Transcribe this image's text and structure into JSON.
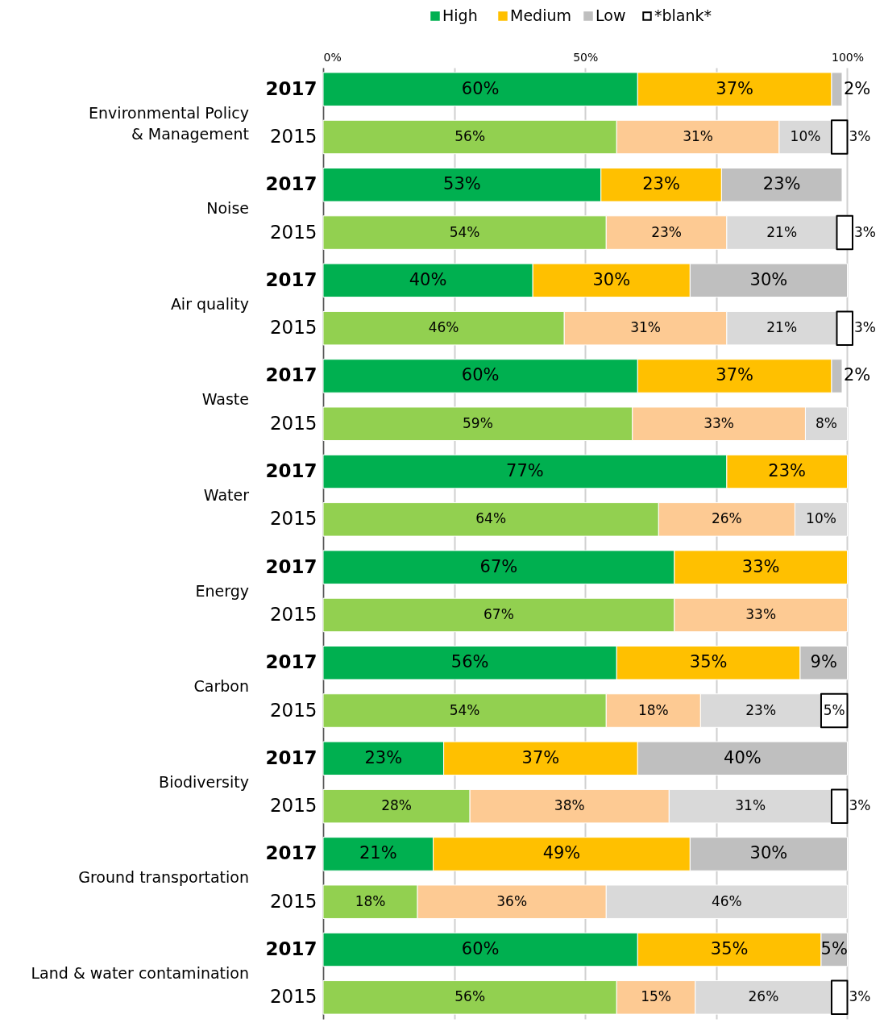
{
  "chart_data": {
    "type": "bar",
    "orientation": "horizontal",
    "stacked": true,
    "grid": "x",
    "legend": "top",
    "categories": [
      "2017",
      "2015",
      "2017",
      "2015",
      "2017",
      "2015",
      "2017",
      "2015",
      "2017",
      "2015",
      "2017",
      "2015",
      "2017",
      "2015",
      "2017",
      "2015",
      "2017",
      "2015",
      "2017",
      "2015"
    ],
    "annotations": [
      "Environmental Policy\n& Management",
      "Noise",
      "Air quality",
      "Waste",
      "Water",
      "Energy",
      "Carbon",
      "Biodiversity",
      "Ground transportation",
      "Land & water contamination"
    ],
    "xlim": [
      0,
      101
    ],
    "xticks": [
      {
        "value": 0,
        "label": "0%"
      },
      {
        "value": 25,
        "label": null
      },
      {
        "value": 50,
        "label": "50%"
      },
      {
        "value": 75,
        "label": null
      },
      {
        "value": 100,
        "label": "100%"
      }
    ],
    "series": [
      {
        "name": "High",
        "color": "#00b050",
        "colors": [
          "#00b050",
          "#92d050",
          "#00b050",
          "#92d050",
          "#00b050",
          "#92d050",
          "#00b050",
          "#92d050",
          "#00b050",
          "#92d050",
          "#00b050",
          "#92d050",
          "#00b050",
          "#92d050",
          "#00b050",
          "#92d050",
          "#00b050",
          "#92d050",
          "#00b050",
          "#92d050"
        ],
        "values": [
          60,
          56,
          53,
          54,
          40,
          46,
          60,
          59,
          77,
          64,
          67,
          67,
          56,
          54,
          23,
          28,
          21,
          18,
          60,
          56
        ],
        "value_labels": [
          "60%",
          "56%",
          "53%",
          "54%",
          "40%",
          "46%",
          "60%",
          "59%",
          "77%",
          "64%",
          "67%",
          "67%",
          "56%",
          "54%",
          "23%",
          "28%",
          "21%",
          "18%",
          "60%",
          "56%"
        ]
      },
      {
        "name": "Medium",
        "color": "#ffc000",
        "colors": [
          "#ffc000",
          "#fdca93",
          "#ffc000",
          "#fdca93",
          "#ffc000",
          "#fdca93",
          "#ffc000",
          "#fdca93",
          "#ffc000",
          "#fdca93",
          "#ffc000",
          "#fdca93",
          "#ffc000",
          "#fdca93",
          "#ffc000",
          "#fdca93",
          "#ffc000",
          "#fdca93",
          "#ffc000",
          "#fdca93"
        ],
        "values": [
          37,
          31,
          23,
          23,
          30,
          31,
          37,
          33,
          23,
          26,
          33,
          33,
          35,
          18,
          37,
          38,
          49,
          36,
          35,
          15
        ],
        "value_labels": [
          "37%",
          "31%",
          "23%",
          "23%",
          "30%",
          "31%",
          "37%",
          "33%",
          "23%",
          "26%",
          "33%",
          "33%",
          "35%",
          "18%",
          "37%",
          "38%",
          "49%",
          "36%",
          "35%",
          "15%"
        ]
      },
      {
        "name": "Low",
        "color": "#bfbfbf",
        "colors": [
          "#bfbfbf",
          "#d9d9d9",
          "#bfbfbf",
          "#d9d9d9",
          "#bfbfbf",
          "#d9d9d9",
          "#bfbfbf",
          "#d9d9d9",
          "#bfbfbf",
          "#d9d9d9",
          "#bfbfbf",
          "#d9d9d9",
          "#bfbfbf",
          "#d9d9d9",
          "#bfbfbf",
          "#d9d9d9",
          "#bfbfbf",
          "#d9d9d9",
          "#bfbfbf",
          "#d9d9d9"
        ],
        "values": [
          2,
          10,
          23,
          21,
          30,
          21,
          2,
          8,
          null,
          10,
          null,
          null,
          9,
          23,
          40,
          31,
          30,
          46,
          5,
          26
        ],
        "value_labels": [
          "2%",
          "10%",
          "23%",
          "21%",
          "30%",
          "21%",
          "2%",
          "8%",
          null,
          "10%",
          null,
          null,
          "9%",
          "23%",
          "40%",
          "31%",
          "30%",
          "46%",
          "5%",
          "26%"
        ]
      },
      {
        "name": "*blank*",
        "color": "#ffffff",
        "colors": [
          "#ffffff",
          "#ffffff",
          "#ffffff",
          "#ffffff",
          "#ffffff",
          "#ffffff",
          "#ffffff",
          "#ffffff",
          "#ffffff",
          "#ffffff",
          "#ffffff",
          "#ffffff",
          "#ffffff",
          "#ffffff",
          "#ffffff",
          "#ffffff",
          "#ffffff",
          "#ffffff",
          "#ffffff",
          "#ffffff"
        ],
        "values": [
          null,
          3,
          null,
          3,
          null,
          3,
          null,
          null,
          null,
          null,
          null,
          null,
          null,
          5,
          null,
          3,
          null,
          null,
          null,
          3
        ],
        "value_labels": [
          null,
          "3%",
          null,
          "3%",
          null,
          "3%",
          null,
          null,
          null,
          null,
          null,
          null,
          null,
          "5%",
          null,
          "3%",
          null,
          null,
          null,
          "3%"
        ]
      }
    ]
  }
}
